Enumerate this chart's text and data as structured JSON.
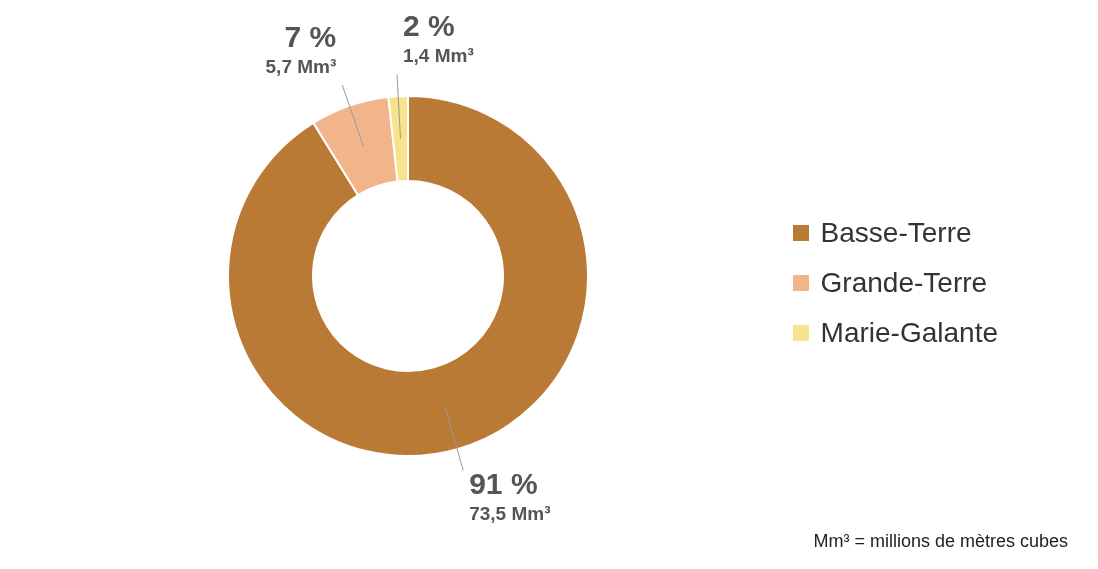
{
  "chart_data": {
    "type": "donut",
    "categories": [
      "Basse-Terre",
      "Grande-Terre",
      "Marie-Galante"
    ],
    "values": [
      73.5,
      5.7,
      1.4
    ],
    "colors": [
      "#b87a35",
      "#f2b58a",
      "#f7e38c"
    ],
    "value_labels": [
      "91 %\n73,5 Mm³",
      "7 %\n5,7 Mm³",
      "2 %\n1,4 Mm³"
    ],
    "legend": "right",
    "annotations": [
      "Mm³ = millions de mètres cubes"
    ]
  }
}
